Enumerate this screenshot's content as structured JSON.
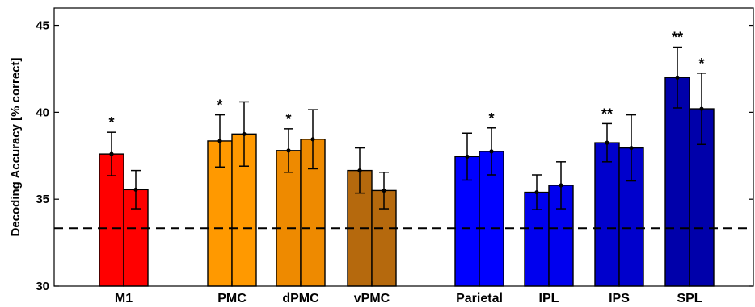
{
  "chart_data": {
    "type": "bar",
    "title": "",
    "xlabel": "",
    "ylabel": "Decoding Accuracy [% correct]",
    "ylim": [
      30,
      46
    ],
    "yticks": [
      30,
      35,
      40,
      45
    ],
    "chance_level": 33.33,
    "categories": [
      "M1",
      "PMC",
      "dPMC",
      "vPMC",
      "Parietal",
      "IPL",
      "IPS",
      "SPL"
    ],
    "series": [
      {
        "values": [
          37.6,
          38.35,
          37.8,
          36.65,
          37.45,
          35.4,
          38.25,
          42.0
        ],
        "errors": [
          1.25,
          1.5,
          1.25,
          1.3,
          1.35,
          1.0,
          1.1,
          1.75
        ],
        "significance": [
          "*",
          "*",
          "*",
          "",
          "",
          "",
          "**",
          "**"
        ]
      },
      {
        "values": [
          35.55,
          38.75,
          38.45,
          35.5,
          37.75,
          35.8,
          37.95,
          40.2
        ],
        "errors": [
          1.1,
          1.85,
          1.7,
          1.05,
          1.35,
          1.35,
          1.9,
          2.05
        ],
        "significance": [
          "",
          "",
          "",
          "",
          "*",
          "",
          "",
          "*"
        ]
      }
    ],
    "colors": {
      "bars_primary": [
        "#ff0000",
        "#ff9900",
        "#ee8a00",
        "#b5690d",
        "#0000ff",
        "#0000ee",
        "#0000cc",
        "#0000aa"
      ],
      "bars_secondary": [
        "#ff0000",
        "#ff9900",
        "#ee8a00",
        "#b5690d",
        "#0000ff",
        "#0000ee",
        "#0000cc",
        "#0000aa"
      ],
      "axis": "#000000"
    },
    "grid": false
  }
}
